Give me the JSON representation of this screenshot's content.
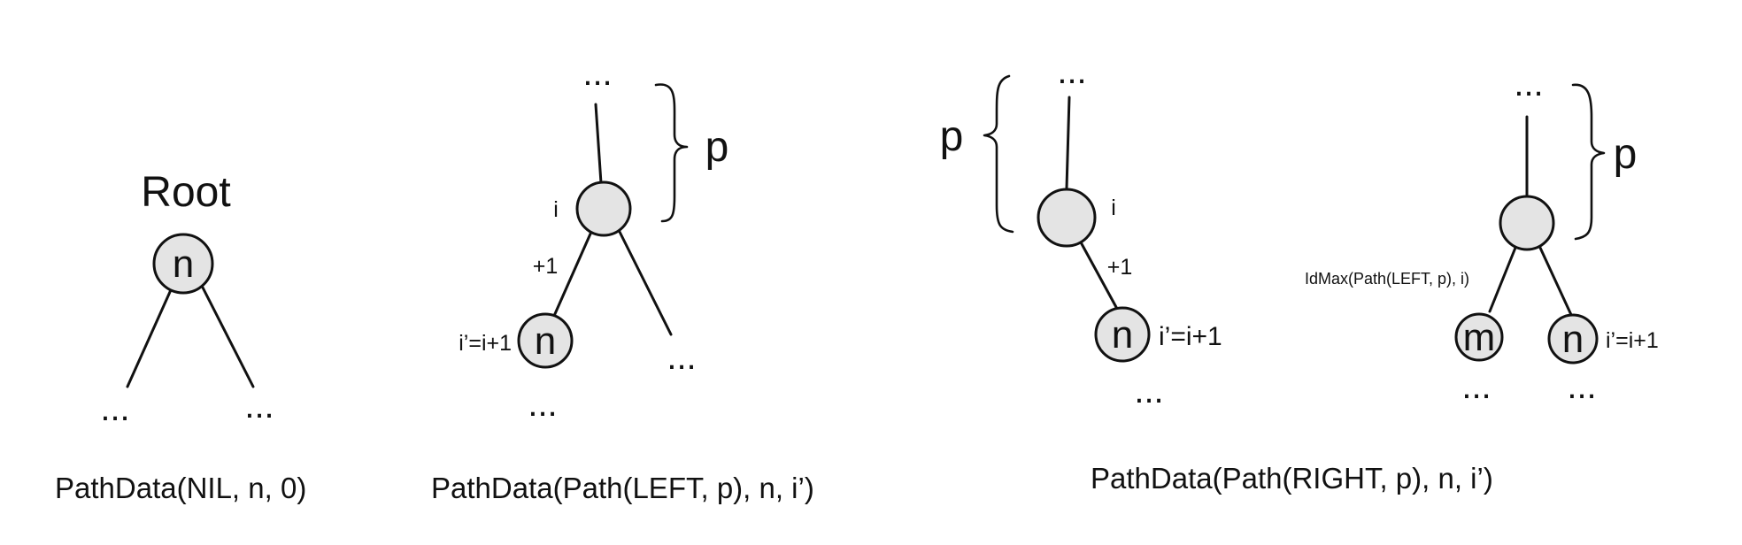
{
  "panel1": {
    "root_label": "Root",
    "node": "n",
    "dots_left": "...",
    "dots_right": "...",
    "caption": "PathData(NIL, n, 0)"
  },
  "panel2": {
    "dots_top": "...",
    "brace_label": "p",
    "parent_index": "i",
    "edge_label": "+1",
    "child_index": "i’=i+1",
    "child_node": "n",
    "dots_below_child": "...",
    "dots_right": "...",
    "caption": "PathData(Path(LEFT, p), n, i’)"
  },
  "panel3": {
    "dots_top": "...",
    "brace_label": "p",
    "parent_index": "i",
    "edge_label": "+1",
    "child_node": "n",
    "child_index": "i’=i+1",
    "dots_below_child": "...",
    "caption": "PathData(Path(RIGHT, p), n, i’)"
  },
  "panel4": {
    "dots_top": "...",
    "brace_label": "p",
    "left_index": "IdMax(Path(LEFT, p), i)",
    "left_node": "m",
    "right_node": "n",
    "right_index": "i’=i+1",
    "dots_below_left": "...",
    "dots_below_right": "..."
  }
}
